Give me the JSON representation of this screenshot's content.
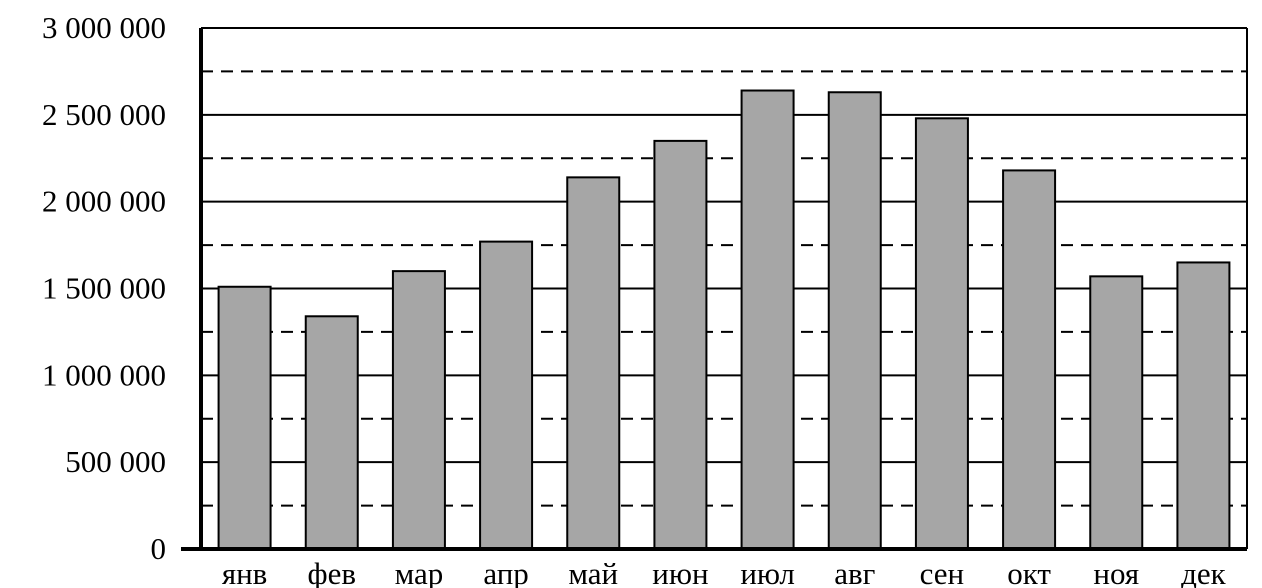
{
  "chart_data": {
    "type": "bar",
    "title": "",
    "xlabel": "",
    "ylabel": "",
    "categories": [
      "янв",
      "фев",
      "мар",
      "апр",
      "май",
      "июн",
      "июл",
      "авг",
      "сен",
      "окт",
      "ноя",
      "дек"
    ],
    "values": [
      1510000,
      1340000,
      1600000,
      1770000,
      2140000,
      2350000,
      2640000,
      2630000,
      2480000,
      2180000,
      1570000,
      1650000
    ],
    "ylim": [
      0,
      3000000
    ],
    "y_ticks": [
      0,
      500000,
      1000000,
      1500000,
      2000000,
      2500000,
      3000000
    ],
    "y_tick_labels": [
      "0",
      "500 000",
      "1 000 000",
      "1 500 000",
      "2 000 000",
      "2 500 000",
      "3 000 000"
    ],
    "y_minor_ticks": [
      250000,
      750000,
      1250000,
      1750000,
      2250000,
      2750000
    ],
    "grid": true,
    "minor_grid": "dashed",
    "legend": "none",
    "colors": {
      "bar_fill": "#a6a6a6",
      "bar_stroke": "#000000"
    }
  }
}
